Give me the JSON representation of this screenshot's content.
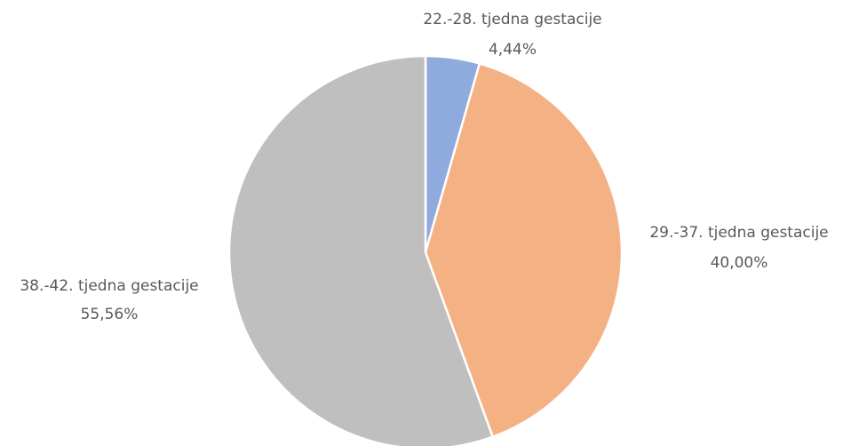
{
  "chart_data": {
    "type": "pie",
    "categories": [
      "22.-28. tjedna gestacije",
      "29.-37. tjedna gestacije",
      "38.-42. tjedna gestacije"
    ],
    "values": [
      4.44,
      40.0,
      55.56
    ],
    "value_labels": [
      "4,44%",
      "40,00%",
      "55,56%"
    ],
    "colors": [
      "#8faadc",
      "#f4b183",
      "#bfbfbf"
    ]
  }
}
